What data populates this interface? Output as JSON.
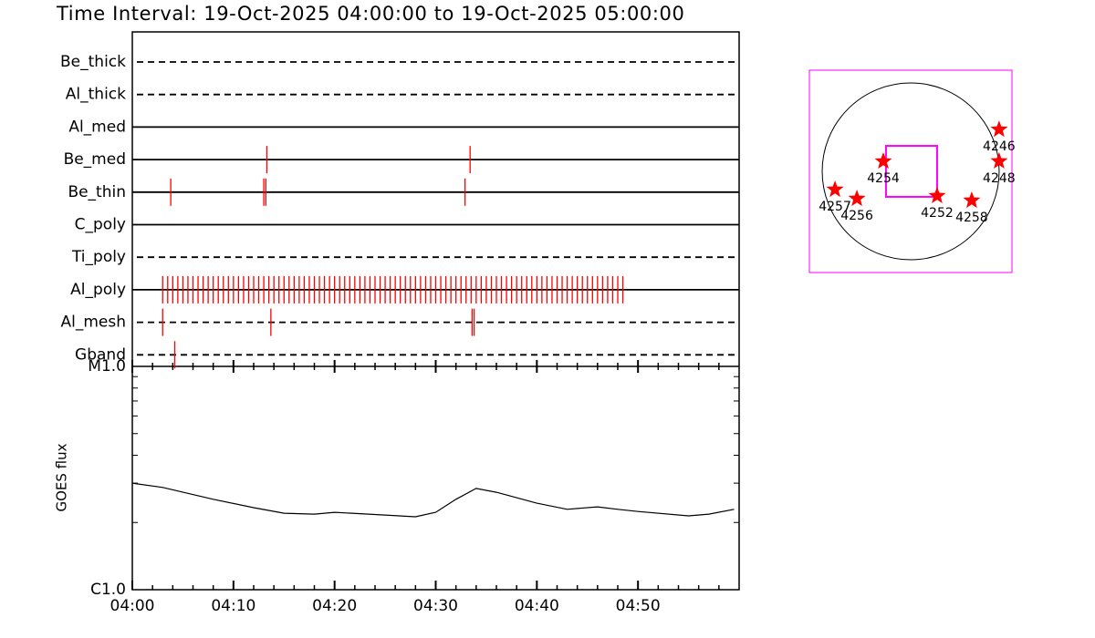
{
  "chart_data": [
    {
      "type": "timeline",
      "title": "Time Interval: 19-Oct-2025 04:00:00 to 19-Oct-2025 05:00:00",
      "xlim": [
        0,
        60
      ],
      "color": "#ff0000",
      "rows": [
        {
          "name": "Be_thick",
          "style": "dashed",
          "x": []
        },
        {
          "name": "Al_thick",
          "style": "dashed",
          "x": []
        },
        {
          "name": "Al_med",
          "style": "solid",
          "x": []
        },
        {
          "name": "Be_med",
          "style": "solid",
          "x": [
            13.3,
            33.4
          ]
        },
        {
          "name": "Be_thin",
          "style": "solid",
          "x": [
            3.8,
            13.0,
            13.2,
            32.9
          ]
        },
        {
          "name": "C_poly",
          "style": "solid",
          "x": []
        },
        {
          "name": "Ti_poly",
          "style": "dashed",
          "x": []
        },
        {
          "name": "Al_poly",
          "style": "solid",
          "x": [
            3,
            3.5,
            4,
            4.5,
            5,
            5.5,
            6,
            6.5,
            7,
            7.5,
            8,
            8.5,
            9,
            9.5,
            10,
            10.5,
            11,
            11.5,
            12,
            12.5,
            13,
            13.5,
            14,
            14.5,
            15,
            15.5,
            16,
            16.5,
            17,
            17.5,
            18,
            18.5,
            19,
            19.5,
            20,
            20.5,
            21,
            21.5,
            22,
            22.5,
            23,
            23.5,
            24,
            24.5,
            25,
            25.5,
            26,
            26.5,
            27,
            27.5,
            28,
            28.5,
            29,
            29.5,
            30,
            30.5,
            31,
            31.5,
            32,
            32.5,
            33,
            33.5,
            34,
            34.5,
            35,
            35.5,
            36,
            36.5,
            37,
            37.5,
            38,
            38.5,
            39,
            39.5,
            40,
            40.5,
            41,
            41.5,
            42,
            42.5,
            43,
            43.5,
            44,
            44.5,
            45,
            45.5,
            46,
            46.5,
            47,
            47.5,
            48,
            48.5
          ]
        },
        {
          "name": "Al_mesh",
          "style": "dashed",
          "x": [
            3.0,
            13.7,
            33.6,
            33.8
          ]
        },
        {
          "name": "Gband",
          "style": "dashed",
          "x": [
            4.2
          ]
        }
      ]
    },
    {
      "type": "line",
      "ylabel": "GOES flux",
      "log_scale": true,
      "color": "#000000",
      "x": [
        0,
        3,
        8,
        12,
        15,
        18,
        20,
        25,
        28,
        30,
        32,
        34,
        36,
        40,
        43,
        46,
        48,
        50,
        55,
        57,
        59.5
      ],
      "values": [
        3e-06,
        2.87e-06,
        2.54e-06,
        2.33e-06,
        2.2e-06,
        2.18e-06,
        2.22e-06,
        2.16e-06,
        2.12e-06,
        2.22e-06,
        2.54e-06,
        2.84e-06,
        2.73e-06,
        2.44e-06,
        2.29e-06,
        2.35e-06,
        2.29e-06,
        2.24e-06,
        2.14e-06,
        2.18e-06,
        2.29e-06
      ],
      "xlim": [
        0,
        60
      ],
      "xticks": [
        {
          "value": 0,
          "label": "04:00"
        },
        {
          "value": 10,
          "label": "04:10"
        },
        {
          "value": 20,
          "label": "04:20"
        },
        {
          "value": 30,
          "label": "04:30"
        },
        {
          "value": 40,
          "label": "04:40"
        },
        {
          "value": 50,
          "label": "04:50"
        }
      ],
      "minor_xticks": [
        2,
        4,
        6,
        8,
        12,
        14,
        16,
        18,
        22,
        24,
        26,
        28,
        32,
        34,
        36,
        38,
        42,
        44,
        46,
        48,
        52,
        54,
        56,
        58
      ],
      "ylim": [
        1e-06,
        1e-05
      ],
      "yticks": [
        {
          "value": 1e-06,
          "label": "C1.0"
        },
        {
          "value": 1e-05,
          "label": "M1.0"
        }
      ],
      "minor_yticks": [
        2e-06,
        3e-06,
        4e-06,
        5e-06,
        6e-06,
        7e-06,
        8e-06,
        9e-06
      ]
    },
    {
      "type": "scatter",
      "color": "#ff0000",
      "frame_color": "#ff00ff",
      "xlim": [
        -1100,
        1100
      ],
      "ylim": [
        -1100,
        1100
      ],
      "disk_radius": 961,
      "fov": {
        "x": [
          -268,
          287
        ],
        "y": [
          -277,
          277
        ]
      },
      "labels": [
        "4246",
        "4248",
        "4254",
        "4257",
        "4256",
        "4252",
        "4258"
      ],
      "x": [
        960,
        960,
        -297,
        -822,
        -584,
        287,
        663
      ],
      "y": [
        455,
        110,
        109,
        -198,
        -297,
        -267,
        -317
      ]
    }
  ]
}
